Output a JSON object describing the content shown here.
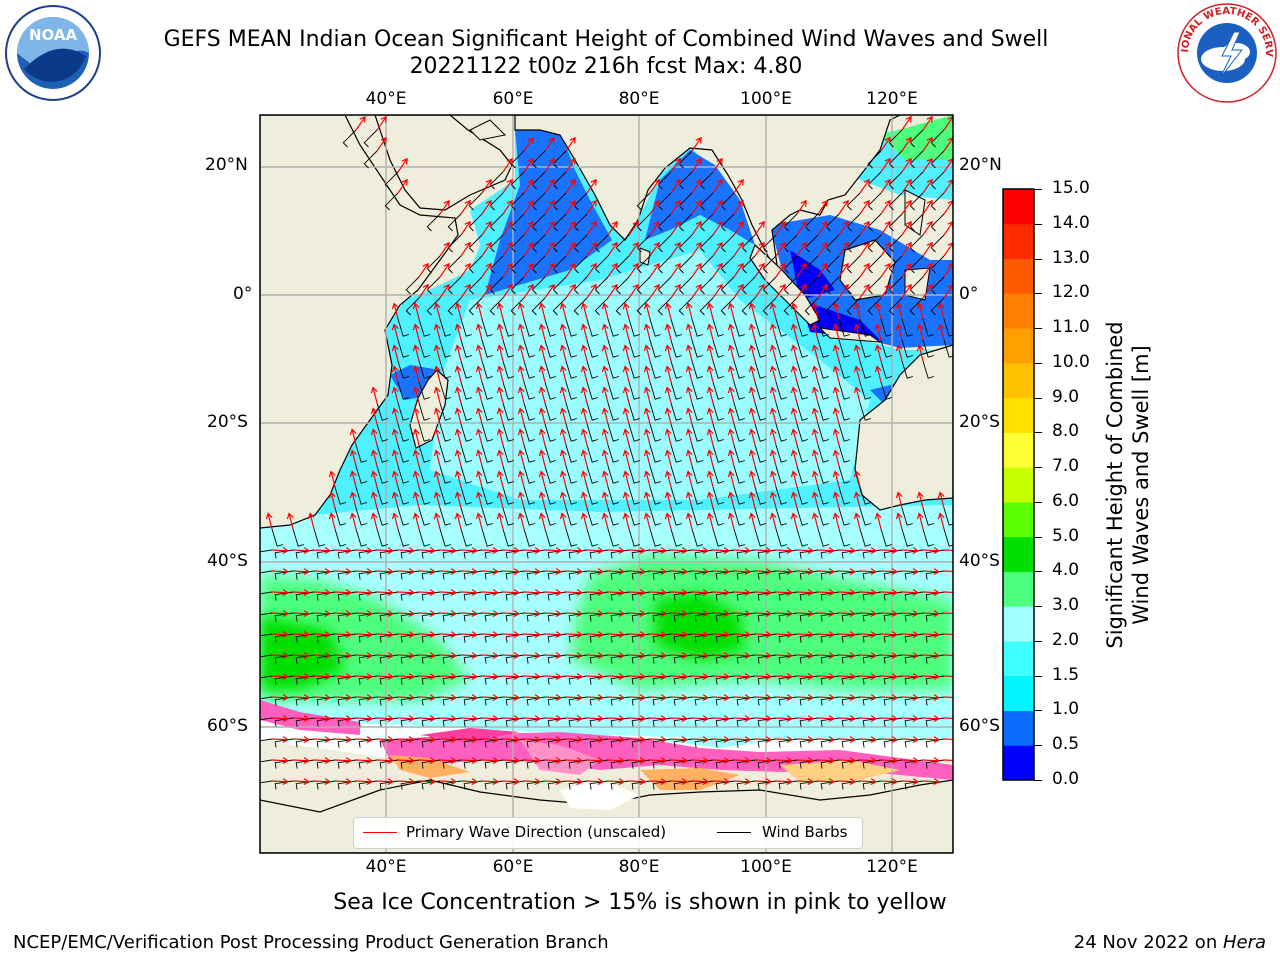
{
  "title": {
    "line1": "GEFS MEAN Indian Ocean Significant Height of Combined Wind Waves and Swell",
    "line2": "20221122 t00z 216h fcst   Max: 4.80"
  },
  "logos": {
    "left": "NOAA",
    "right": "NATIONAL WEATHER SERVICE"
  },
  "map": {
    "lon_labels": [
      "40°E",
      "60°E",
      "80°E",
      "100°E",
      "120°E"
    ],
    "lat_labels": [
      "20°N",
      "0°",
      "20°S",
      "40°S",
      "60°S"
    ],
    "extent": {
      "lon_min": 20,
      "lon_max": 130,
      "lat_min": -75,
      "lat_max": 28
    }
  },
  "colorbar": {
    "ticks": [
      "0.0",
      "0.5",
      "1.0",
      "1.5",
      "2.0",
      "3.0",
      "4.0",
      "5.0",
      "6.0",
      "7.0",
      "8.0",
      "9.0",
      "10.0",
      "11.0",
      "12.0",
      "13.0",
      "14.0",
      "15.0"
    ],
    "colors": [
      "#0000ff",
      "#0a6cff",
      "#00f5ff",
      "#40ffff",
      "#a0ffff",
      "#4dff7d",
      "#00e000",
      "#5aff00",
      "#c8ff00",
      "#ffff33",
      "#ffe000",
      "#ffc000",
      "#ffa000",
      "#ff8000",
      "#ff5a00",
      "#ff2a00",
      "#ff0000"
    ],
    "label_line1": "Significant Height of Combined",
    "label_line2": "Wind Waves and Swell [m]"
  },
  "legend": {
    "wave_label": "Primary Wave Direction (unscaled)",
    "wind_label": "Wind Barbs",
    "wave_color": "#ff0000",
    "wind_color": "#000000"
  },
  "caption": "Sea Ice Concentration > 15% is shown in pink to yellow",
  "footer": {
    "left": "NCEP/EMC/Verification Post Processing Product Generation Branch",
    "right_prefix": "24 Nov 2022 on ",
    "right_host": "Hera"
  }
}
